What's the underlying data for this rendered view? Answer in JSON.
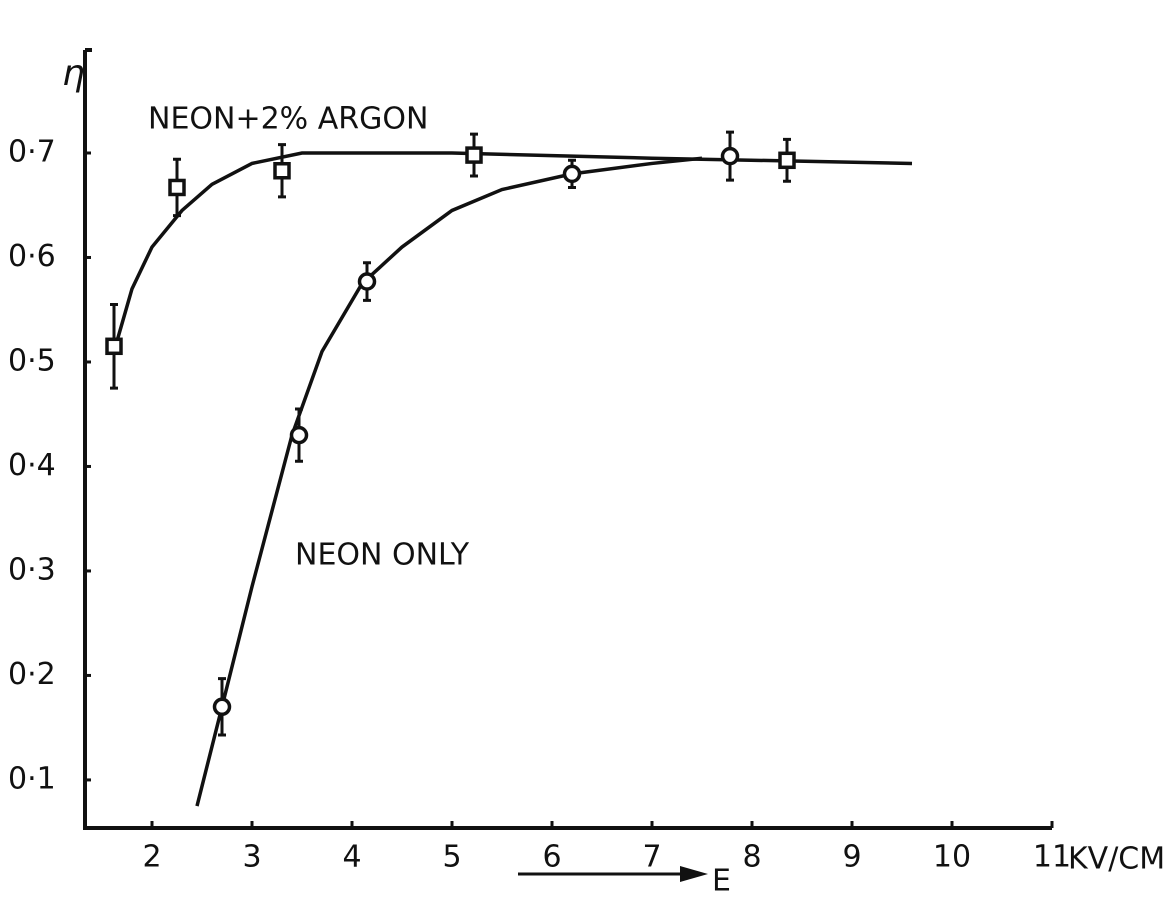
{
  "chart_data": {
    "type": "scatter",
    "y_label": "η",
    "x_label": "E",
    "x_unit": "KV/CM",
    "xlim": [
      1.33,
      11
    ],
    "xticks": [
      2,
      3,
      4,
      5,
      6,
      7,
      8,
      9,
      10,
      11
    ],
    "ylim": [
      0.054,
      0.8
    ],
    "yticks": [
      {
        "value": 0.1,
        "label": "0·1"
      },
      {
        "value": 0.2,
        "label": "0·2"
      },
      {
        "value": 0.3,
        "label": "0·3"
      },
      {
        "value": 0.4,
        "label": "0·4"
      },
      {
        "value": 0.5,
        "label": "0·5"
      },
      {
        "value": 0.6,
        "label": "0·6"
      },
      {
        "value": 0.7,
        "label": "0·7"
      }
    ],
    "series": [
      {
        "name": "NEON+2% ARGON",
        "color": "#111111",
        "marker": "square",
        "x": [
          1.62,
          2.25,
          3.3,
          5.22,
          8.35
        ],
        "values": [
          0.515,
          0.667,
          0.683,
          0.698,
          0.693
        ],
        "errors": [
          0.04,
          0.027,
          0.025,
          0.02,
          0.02
        ],
        "fit": {
          "x": [
            1.65,
            1.8,
            2,
            2.3,
            2.6,
            3,
            3.5,
            5,
            7,
            9.6
          ],
          "values": [
            0.52,
            0.57,
            0.61,
            0.645,
            0.67,
            0.69,
            0.7,
            0.7,
            0.695,
            0.69
          ]
        }
      },
      {
        "name": "NEON ONLY",
        "color": "#111111",
        "marker": "circle",
        "x": [
          2.7,
          3.47,
          4.15,
          6.2,
          7.78
        ],
        "values": [
          0.17,
          0.43,
          0.577,
          0.68,
          0.697
        ],
        "errors": [
          0.027,
          0.025,
          0.018,
          0.013,
          0.023
        ],
        "fit": {
          "x": [
            2.45,
            2.7,
            3,
            3.4,
            3.7,
            4.1,
            4.5,
            5,
            5.5,
            6.2,
            7,
            7.5
          ],
          "values": [
            0.075,
            0.17,
            0.285,
            0.43,
            0.51,
            0.575,
            0.61,
            0.645,
            0.665,
            0.68,
            0.69,
            0.695
          ]
        }
      }
    ]
  }
}
